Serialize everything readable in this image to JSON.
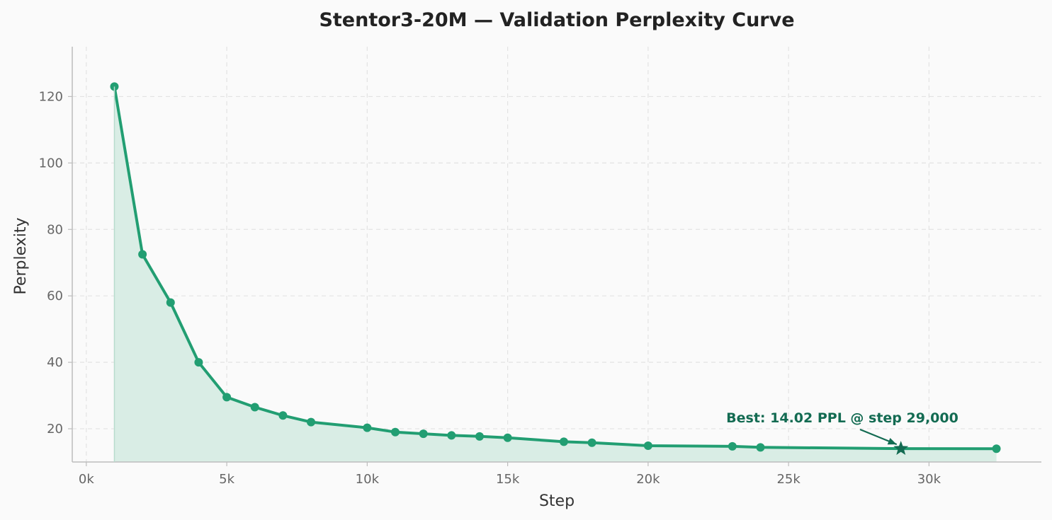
{
  "chart_data": {
    "type": "line",
    "title": "Stentor3-20M — Validation Perplexity Curve",
    "xlabel": "Step",
    "ylabel": "Perplexity",
    "xlim": [
      -500,
      34000
    ],
    "ylim": [
      10,
      135
    ],
    "xticks": [
      0,
      5000,
      10000,
      15000,
      20000,
      25000,
      30000
    ],
    "xtick_labels": [
      "0k",
      "5k",
      "10k",
      "15k",
      "20k",
      "25k",
      "30k"
    ],
    "yticks": [
      20,
      40,
      60,
      80,
      100,
      120
    ],
    "ytick_labels": [
      "20",
      "40",
      "60",
      "80",
      "100",
      "120"
    ],
    "grid": true,
    "fill_under": true,
    "colors": {
      "line": "#229e72",
      "fill": "#d9ede5",
      "best_marker": "#136b52",
      "annotation": "#136b52"
    },
    "series": [
      {
        "x": [
          1000,
          2000,
          3000,
          4000,
          5000,
          6000,
          7000,
          8000,
          10000,
          11000,
          12000,
          13000,
          14000,
          15000,
          17000,
          18000,
          20000,
          23000,
          24000,
          29000,
          32400
        ],
        "y": [
          123,
          72.5,
          58,
          40,
          29.5,
          26.5,
          24,
          22,
          20.3,
          19,
          18.5,
          18,
          17.7,
          17.3,
          16.1,
          15.8,
          14.9,
          14.7,
          14.4,
          14.02,
          14.0
        ]
      }
    ],
    "best": {
      "x": 29000,
      "y": 14.02,
      "label": "Best: 14.02 PPL @ step 29,000"
    }
  }
}
